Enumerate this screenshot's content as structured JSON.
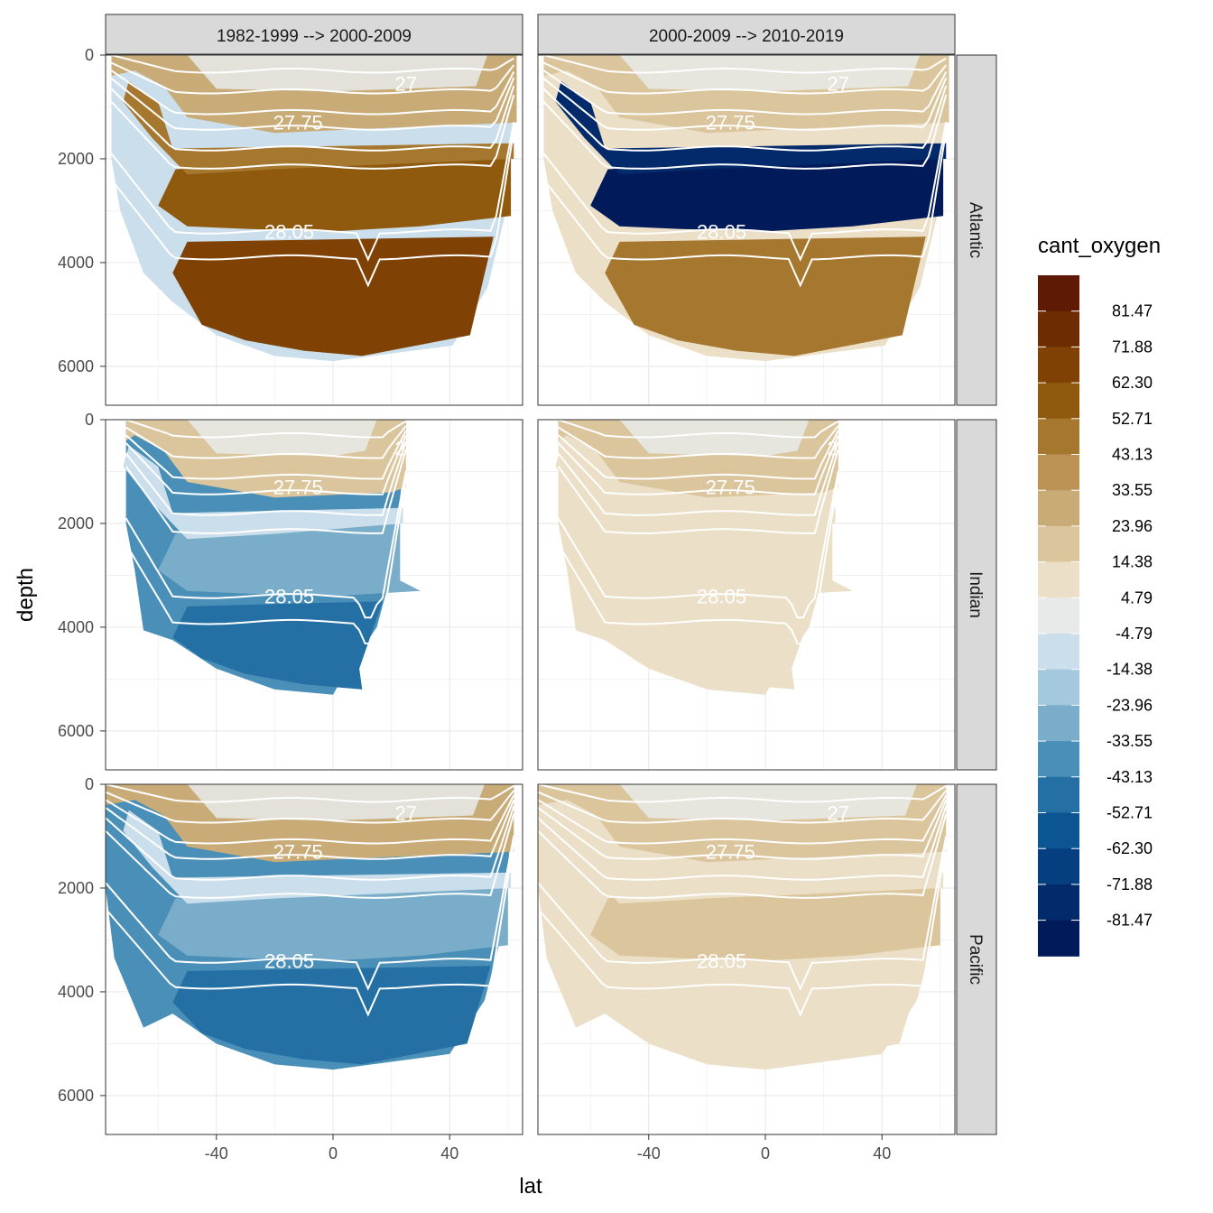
{
  "chart_data": {
    "type": "heatmap",
    "subtype": "faceted filled-contour section (lat vs depth)",
    "xlabel": "lat",
    "ylabel": "depth",
    "x_ticks": [
      -40,
      0,
      40
    ],
    "y_ticks": [
      0,
      2000,
      4000,
      6000
    ],
    "xlim": [
      -78,
      65
    ],
    "ylim": [
      6750,
      0
    ],
    "y_reversed": true,
    "columns": [
      "1982-1999 --> 2000-2009",
      "2000-2009 --> 2010-2019"
    ],
    "rows": [
      "Atlantic",
      "Indian",
      "Pacific"
    ],
    "legend": {
      "title": "cant_oxygen",
      "labels": [
        "81.47",
        "71.88",
        "62.30",
        "52.71",
        "43.13",
        "33.55",
        "23.96",
        "14.38",
        "4.79",
        "-4.79",
        "-14.38",
        "-23.96",
        "-33.55",
        "-43.13",
        "-52.71",
        "-62.30",
        "-71.88",
        "-81.47"
      ],
      "colors": [
        "#5e1a05",
        "#6e2c02",
        "#7f4104",
        "#8f5a0e",
        "#a6772e",
        "#bc9355",
        "#c9ab77",
        "#dbc59c",
        "#ebdfc7",
        "#e8eaea",
        "#cadeeb",
        "#a4c8dd",
        "#79adc9",
        "#4a8fb7",
        "#2470a5",
        "#0b5592",
        "#063f80",
        "#032a6a",
        "#011a5a"
      ]
    },
    "isopycnal_labels": [
      "27",
      "27.75",
      "28.05"
    ],
    "panels": [
      {
        "row": "Atlantic",
        "column": "1982-1999 --> 2000-2009",
        "upper_level_band": 23.96,
        "intermediate_band": 43.13,
        "deep_band": 52.71,
        "abyssal_band": 62.3,
        "south_deep_band": -4.79
      },
      {
        "row": "Atlantic",
        "column": "2000-2009 --> 2010-2019",
        "upper_level_band": 14.38,
        "intermediate_band": -71.88,
        "deep_band": -81.47,
        "abyssal_band": 43.13,
        "south_deep_band": 4.79
      },
      {
        "row": "Indian",
        "column": "1982-1999 --> 2000-2009",
        "upper_level_band": 14.38,
        "intermediate_band": -4.79,
        "deep_band": -23.96,
        "abyssal_band": -43.13,
        "south_deep_band": -33.55
      },
      {
        "row": "Indian",
        "column": "2000-2009 --> 2010-2019",
        "upper_level_band": 14.38,
        "intermediate_band": 4.79,
        "deep_band": 4.79,
        "abyssal_band": 4.79,
        "south_deep_band": 4.79
      },
      {
        "row": "Pacific",
        "column": "1982-1999 --> 2000-2009",
        "upper_level_band": 23.96,
        "intermediate_band": -4.79,
        "deep_band": -23.96,
        "abyssal_band": -43.13,
        "south_deep_band": -33.55
      },
      {
        "row": "Pacific",
        "column": "2000-2009 --> 2010-2019",
        "upper_level_band": 14.38,
        "intermediate_band": 4.79,
        "deep_band": 14.38,
        "abyssal_band": 4.79,
        "south_deep_band": 4.79
      }
    ]
  }
}
